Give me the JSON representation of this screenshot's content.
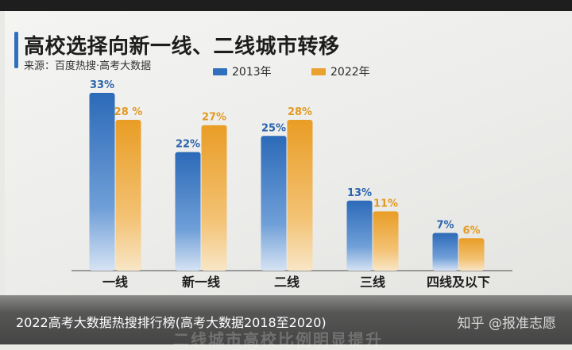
{
  "chart_data": {
    "type": "bar",
    "title": "高校选择向新一线、二线城市转移",
    "source": "来源：百度热搜·高考大数据",
    "categories": [
      "一线",
      "新一线",
      "二线",
      "三线",
      "四线及以下"
    ],
    "series": [
      {
        "name": "2013年",
        "values": [
          33,
          22,
          25,
          13,
          7
        ],
        "labels": [
          "33%",
          "22%",
          "25%",
          "13%",
          "7%"
        ],
        "color": "#2f6fbd"
      },
      {
        "name": "2022年",
        "values": [
          28,
          27,
          28,
          11,
          6
        ],
        "labels": [
          "28 %",
          "27%",
          "28%",
          "11%",
          "6%"
        ],
        "color": "#eba12f"
      }
    ],
    "ylim": [
      0,
      33
    ],
    "grid": false,
    "legend_position": "top"
  },
  "caption": "2022高考大数据热搜排行榜(高考大数据2018至2020)",
  "watermark": "知乎 @报准志愿",
  "faded_text": "二线城市高校比例明显提升"
}
